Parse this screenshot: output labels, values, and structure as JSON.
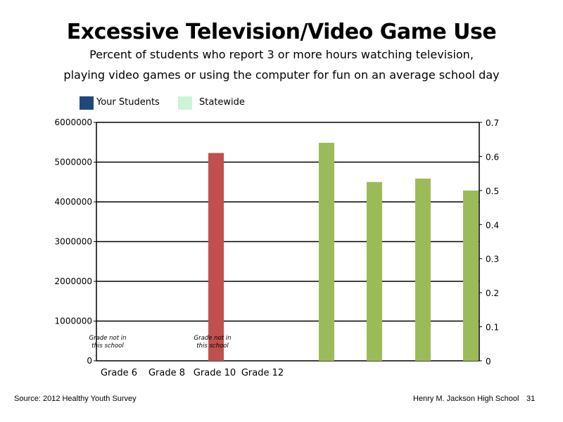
{
  "header": {
    "title": "Excessive Television/Video Game Use",
    "subtitle_line1": "Percent of students who report 3 or more hours watching television,",
    "subtitle_line2": "playing video games or using the computer for fun on an average school day"
  },
  "legend": {
    "items": [
      {
        "label": "Your Students",
        "color": "#1f497d"
      },
      {
        "label": "Statewide",
        "color": "#ccf5d6"
      }
    ]
  },
  "footer": {
    "source": "Source: 2012 Healthy Youth Survey",
    "school": "Henry M. Jackson High School",
    "page_number": "31"
  },
  "chart_data": {
    "type": "bar",
    "categories": [
      "Grade 6",
      "Grade 8",
      "Grade 10",
      "Grade 12"
    ],
    "left_axis": {
      "ylim": [
        0,
        6000000
      ],
      "ticks": [
        "6000000",
        "5000000",
        "4000000",
        "3000000",
        "2000000",
        "1000000",
        "0"
      ]
    },
    "right_axis": {
      "ylim": [
        0,
        0.7
      ],
      "ticks": [
        "0.7",
        "0.6",
        "0.5",
        "0.4",
        "0.3",
        "0.2",
        "0.1",
        "0"
      ]
    },
    "grid": true,
    "bars": [
      {
        "axis": "left",
        "value": 5230000,
        "color": "#c0504d"
      },
      {
        "axis": "right",
        "value": 0.64,
        "color": "#9bbb59"
      },
      {
        "axis": "right",
        "value": 0.525,
        "color": "#9bbb59"
      },
      {
        "axis": "right",
        "value": 0.535,
        "color": "#9bbb59"
      },
      {
        "axis": "right",
        "value": 0.5,
        "color": "#9bbb59"
      }
    ],
    "annotations": [
      {
        "line1": "Grade not in",
        "line2": "this school",
        "category": "Grade 6"
      },
      {
        "line1": "Grade not in",
        "line2": "this school",
        "category": "Grade 10"
      }
    ]
  }
}
